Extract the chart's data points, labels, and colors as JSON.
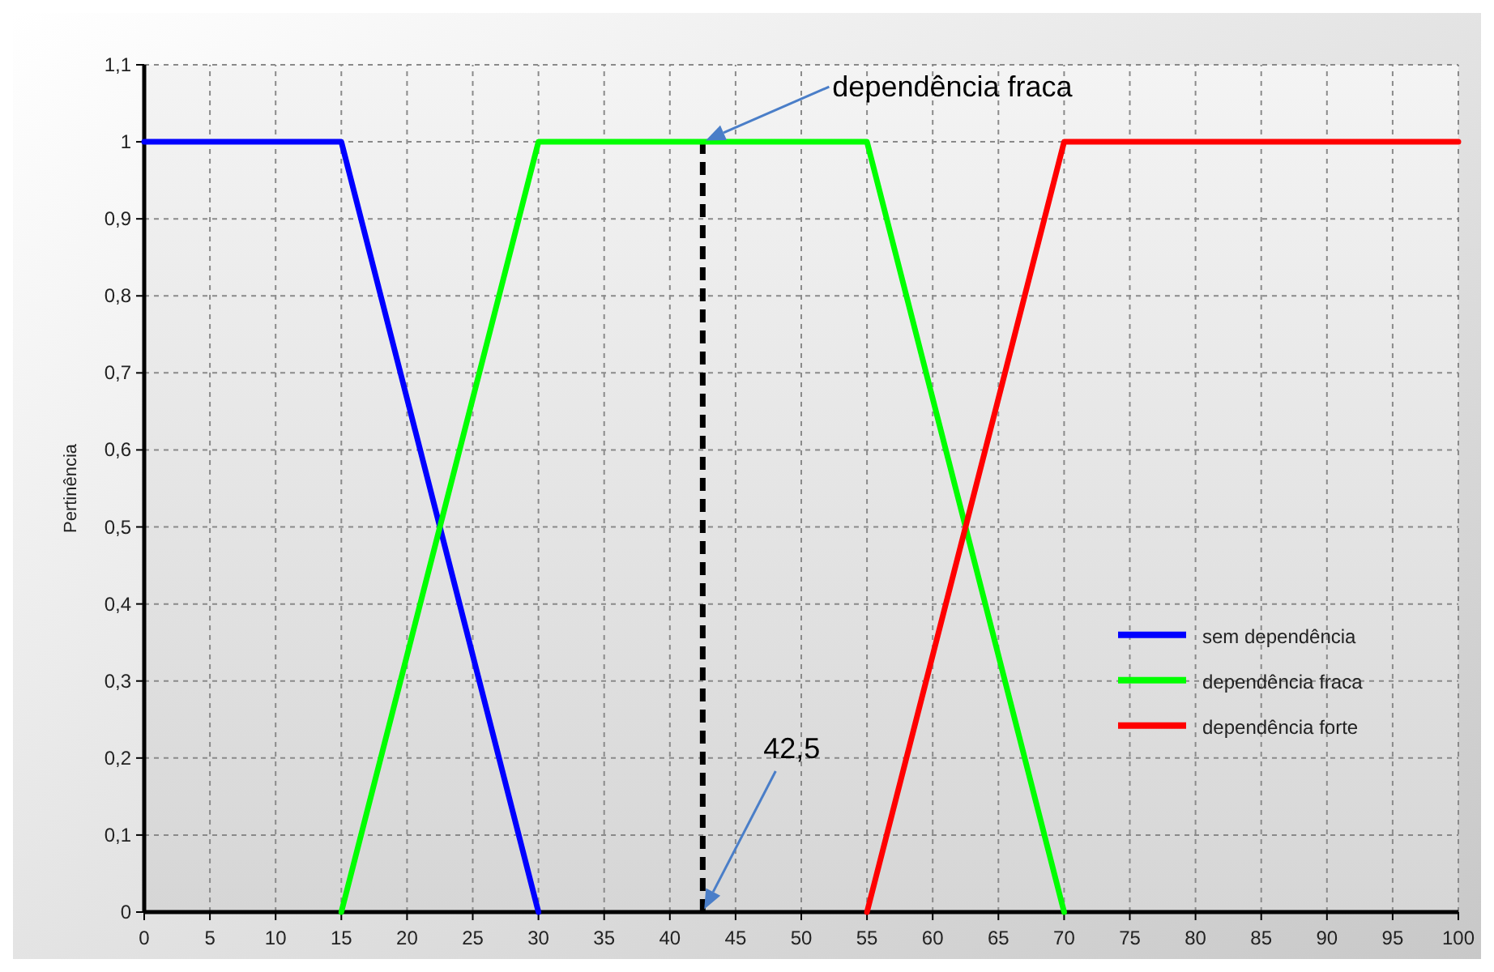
{
  "chart_data": {
    "type": "line",
    "ylabel": "Pertinência",
    "xlim": [
      0,
      100
    ],
    "xticks": [
      0,
      5,
      10,
      15,
      20,
      25,
      30,
      35,
      40,
      45,
      50,
      55,
      60,
      65,
      70,
      75,
      80,
      85,
      90,
      95,
      100
    ],
    "ylim": [
      0,
      1.1
    ],
    "yticks": [
      0,
      {
        "value": 0.1,
        "label": "0,1"
      },
      {
        "value": 0.2,
        "label": "0,2"
      },
      {
        "value": 0.3,
        "label": "0,3"
      },
      {
        "value": 0.4,
        "label": "0,4"
      },
      {
        "value": 0.5,
        "label": "0,5"
      },
      {
        "value": 0.6,
        "label": "0,6"
      },
      {
        "value": 0.7,
        "label": "0,7"
      },
      {
        "value": 0.8,
        "label": "0,8"
      },
      {
        "value": 0.9,
        "label": "0,9"
      },
      1,
      {
        "value": 1.1,
        "label": "1,1"
      }
    ],
    "grid": true,
    "legend": "bottom right",
    "marker": "none",
    "line_style": "solid",
    "series": [
      {
        "name": "sem dependência",
        "color": "#0000ff",
        "x": [
          0,
          15,
          30
        ],
        "values": [
          1,
          1,
          0
        ]
      },
      {
        "name": "dependência fraca",
        "color": "#00ff00",
        "x": [
          15,
          30,
          55,
          70
        ],
        "values": [
          0,
          1,
          1,
          0
        ]
      },
      {
        "name": "dependência forte",
        "color": "#ff0000",
        "x": [
          55,
          70,
          100
        ],
        "values": [
          0,
          1,
          1
        ]
      }
    ],
    "ref_lines": [
      {
        "axis": "x",
        "value": 42.5,
        "color": "#000000",
        "line_style": "dashed"
      }
    ],
    "annotations": [
      "dependência fraca",
      "42,5"
    ]
  }
}
